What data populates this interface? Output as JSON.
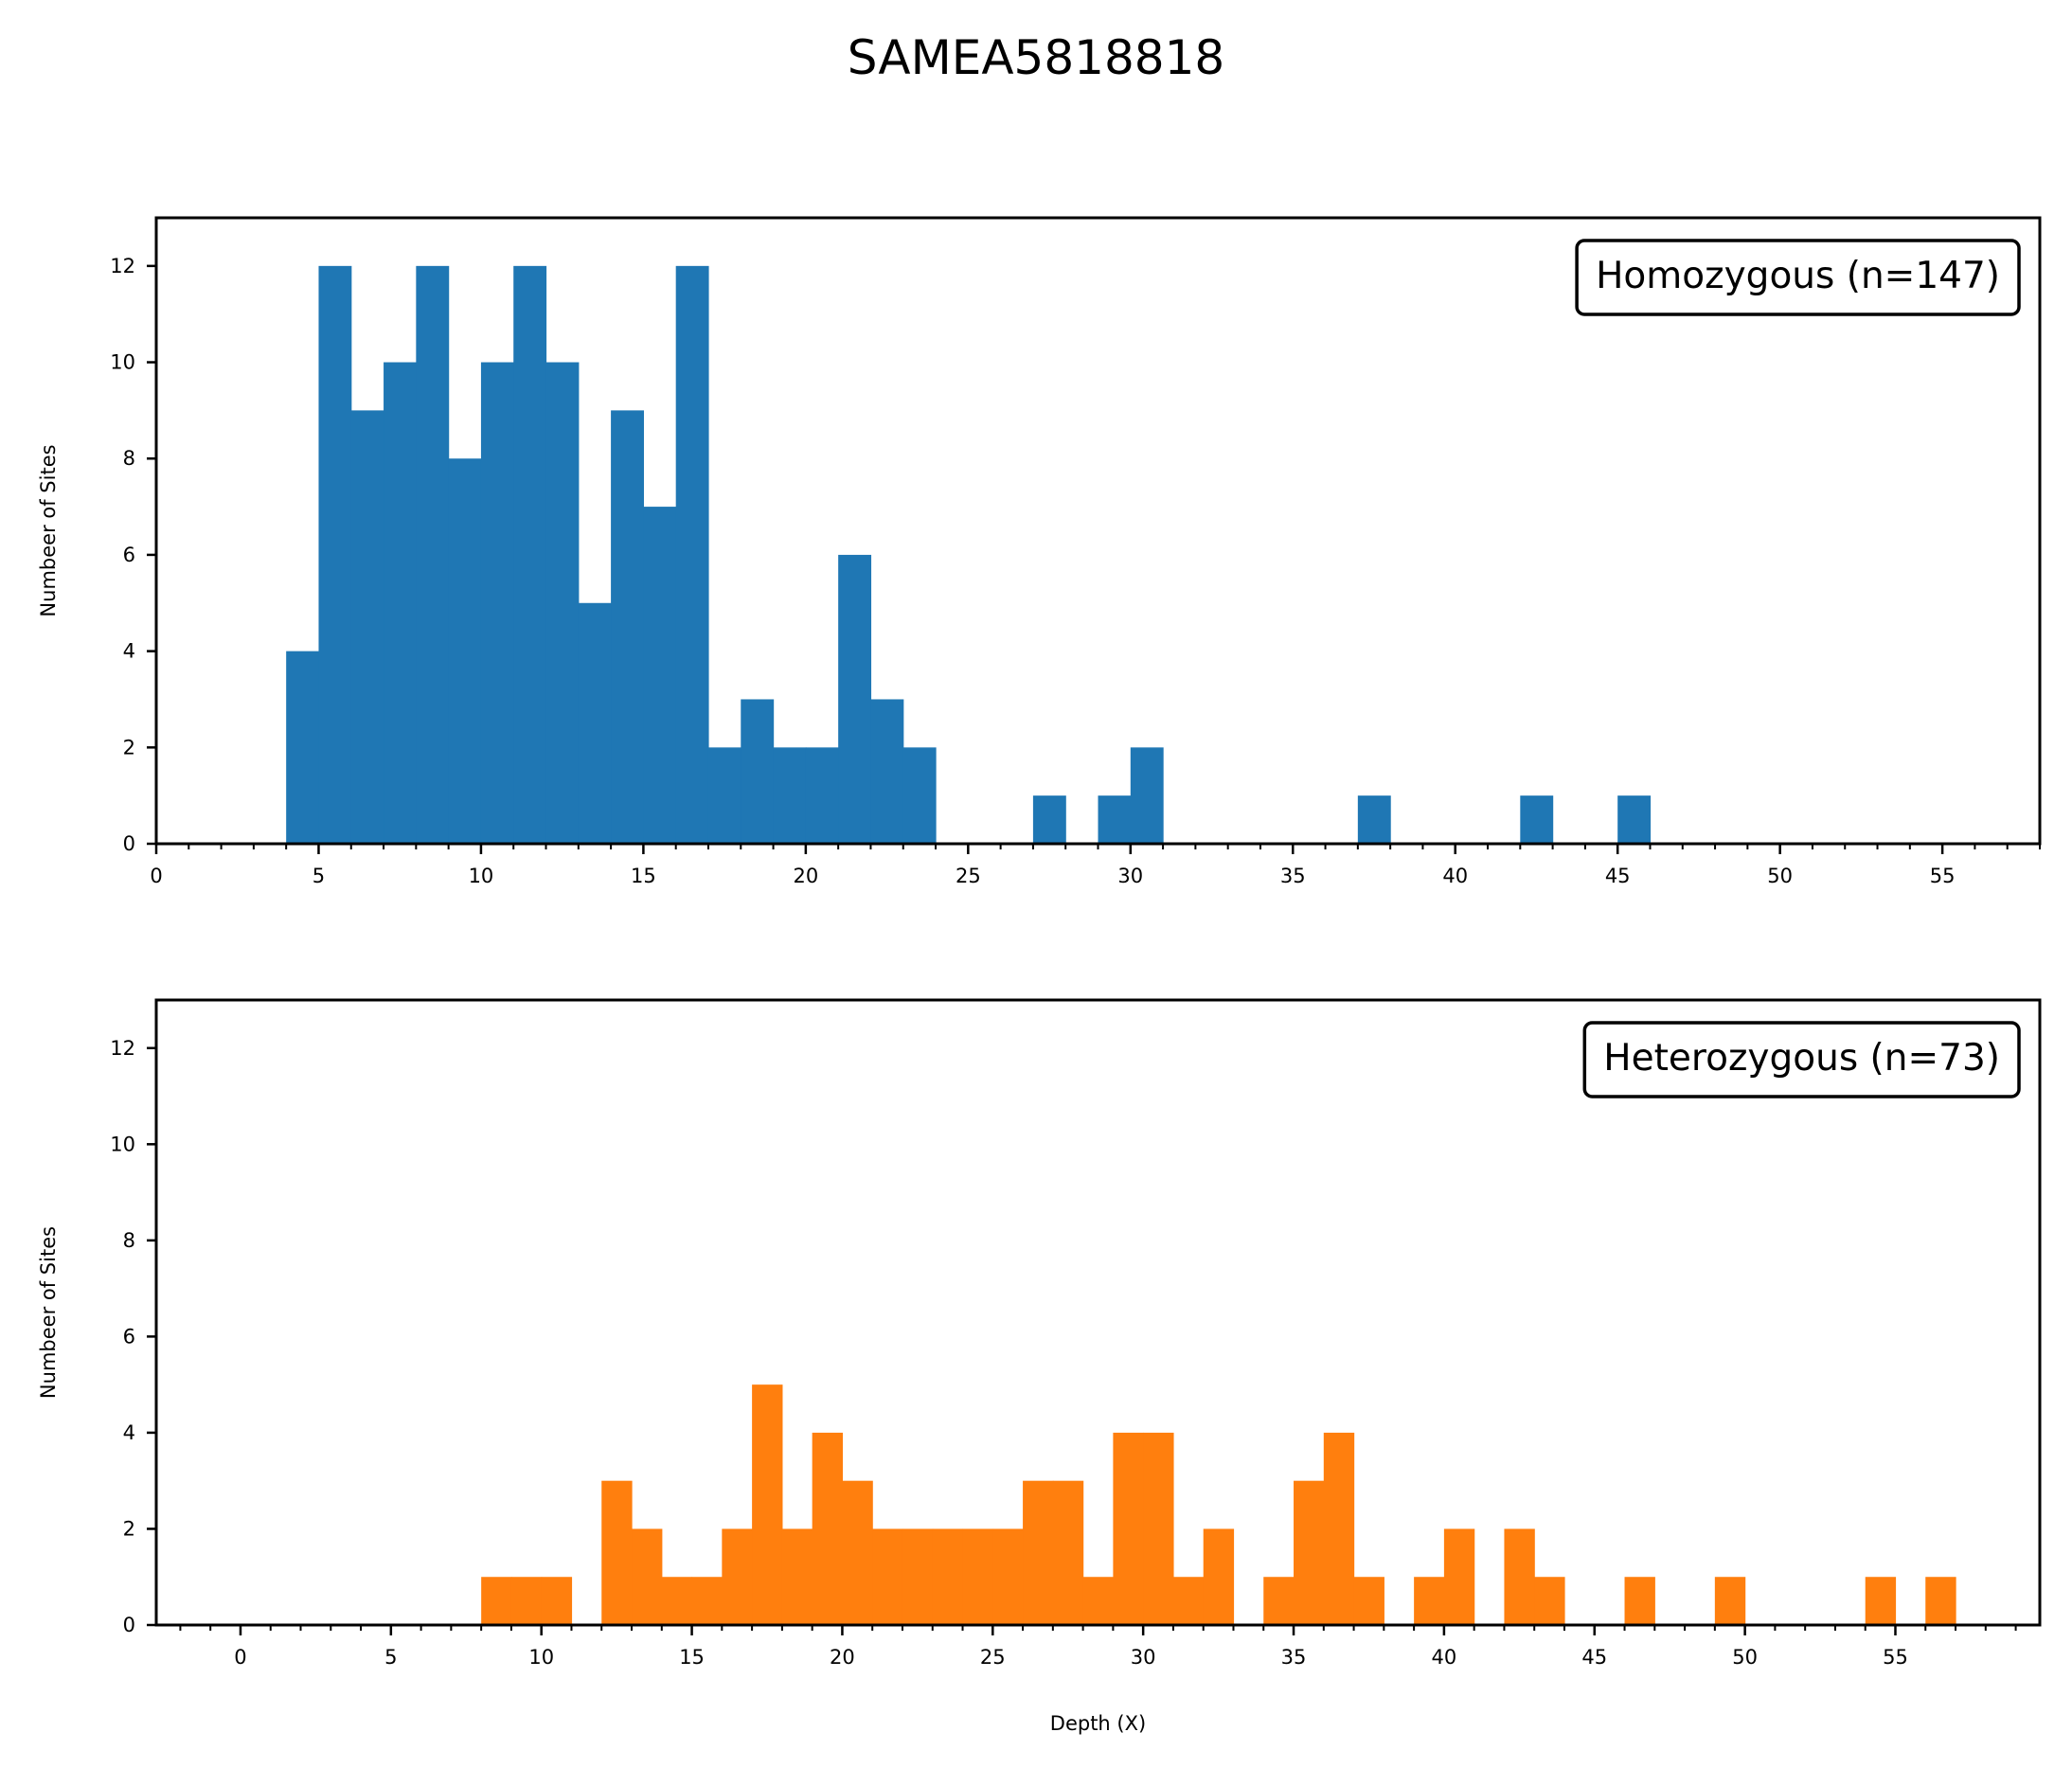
{
  "title": "SAMEA5818818",
  "chart_data": [
    {
      "type": "bar",
      "histogram": true,
      "legend_label": "Homozygous (n=147)",
      "legend_position": "top-right",
      "ylabel": "Numbeer of Sites",
      "xlabel": "",
      "xlim": [
        0,
        58
      ],
      "ylim": [
        0,
        13
      ],
      "xticks": [
        0,
        5,
        10,
        15,
        20,
        25,
        30,
        35,
        40,
        45,
        50,
        55
      ],
      "yticks": [
        0,
        2,
        4,
        6,
        8,
        10,
        12
      ],
      "color": "#1f77b4",
      "bin_width": 1,
      "bins": [
        {
          "x": 4,
          "y": 4
        },
        {
          "x": 5,
          "y": 12
        },
        {
          "x": 6,
          "y": 9
        },
        {
          "x": 7,
          "y": 10
        },
        {
          "x": 8,
          "y": 12
        },
        {
          "x": 9,
          "y": 8
        },
        {
          "x": 10,
          "y": 10
        },
        {
          "x": 11,
          "y": 12
        },
        {
          "x": 12,
          "y": 10
        },
        {
          "x": 13,
          "y": 5
        },
        {
          "x": 14,
          "y": 9
        },
        {
          "x": 15,
          "y": 7
        },
        {
          "x": 16,
          "y": 12
        },
        {
          "x": 17,
          "y": 2
        },
        {
          "x": 18,
          "y": 3
        },
        {
          "x": 19,
          "y": 2
        },
        {
          "x": 20,
          "y": 2
        },
        {
          "x": 21,
          "y": 6
        },
        {
          "x": 22,
          "y": 3
        },
        {
          "x": 23,
          "y": 2
        },
        {
          "x": 27,
          "y": 1
        },
        {
          "x": 29,
          "y": 1
        },
        {
          "x": 30,
          "y": 2
        },
        {
          "x": 37,
          "y": 1
        },
        {
          "x": 42,
          "y": 1
        },
        {
          "x": 45,
          "y": 1
        }
      ]
    },
    {
      "type": "bar",
      "histogram": true,
      "legend_label": "Heterozygous (n=73)",
      "legend_position": "top-right",
      "ylabel": "Numbeer of Sites",
      "xlabel": "Depth (X)",
      "xlim": [
        -2.8,
        59.8
      ],
      "ylim": [
        0,
        13
      ],
      "xticks": [
        0,
        5,
        10,
        15,
        20,
        25,
        30,
        35,
        40,
        45,
        50,
        55
      ],
      "yticks": [
        0,
        2,
        4,
        6,
        8,
        10,
        12
      ],
      "color": "#ff7f0e",
      "bin_width": 1,
      "bins": [
        {
          "x": 8,
          "y": 1
        },
        {
          "x": 9,
          "y": 1
        },
        {
          "x": 10,
          "y": 1
        },
        {
          "x": 12,
          "y": 3
        },
        {
          "x": 13,
          "y": 2
        },
        {
          "x": 14,
          "y": 1
        },
        {
          "x": 15,
          "y": 1
        },
        {
          "x": 16,
          "y": 2
        },
        {
          "x": 17,
          "y": 5
        },
        {
          "x": 18,
          "y": 2
        },
        {
          "x": 19,
          "y": 4
        },
        {
          "x": 20,
          "y": 3
        },
        {
          "x": 21,
          "y": 2
        },
        {
          "x": 22,
          "y": 2
        },
        {
          "x": 23,
          "y": 2
        },
        {
          "x": 24,
          "y": 2
        },
        {
          "x": 25,
          "y": 2
        },
        {
          "x": 26,
          "y": 3
        },
        {
          "x": 27,
          "y": 3
        },
        {
          "x": 28,
          "y": 1
        },
        {
          "x": 29,
          "y": 4
        },
        {
          "x": 30,
          "y": 4
        },
        {
          "x": 31,
          "y": 1
        },
        {
          "x": 32,
          "y": 2
        },
        {
          "x": 34,
          "y": 1
        },
        {
          "x": 35,
          "y": 3
        },
        {
          "x": 36,
          "y": 4
        },
        {
          "x": 37,
          "y": 1
        },
        {
          "x": 39,
          "y": 1
        },
        {
          "x": 40,
          "y": 2
        },
        {
          "x": 42,
          "y": 2
        },
        {
          "x": 43,
          "y": 1
        },
        {
          "x": 46,
          "y": 1
        },
        {
          "x": 49,
          "y": 1
        },
        {
          "x": 54,
          "y": 1
        },
        {
          "x": 56,
          "y": 1
        }
      ]
    }
  ]
}
